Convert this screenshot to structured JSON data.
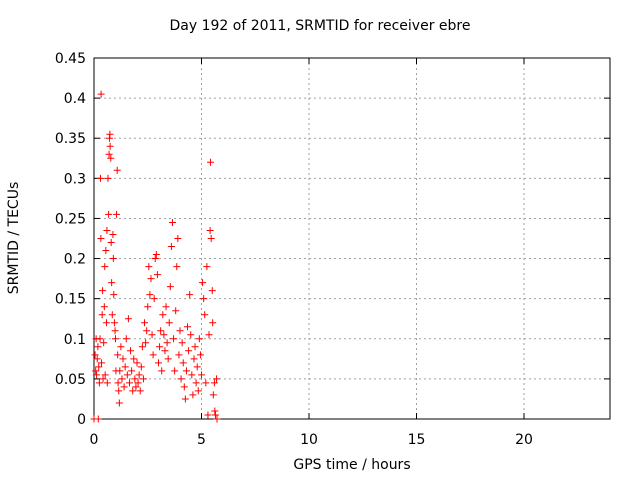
{
  "chart_data": {
    "type": "scatter",
    "title": "Day 192 of 2011, SRMTID for receiver ebre",
    "xlabel": "GPS time / hours",
    "ylabel": "SRMTID / TECUs",
    "xlim": [
      0,
      24
    ],
    "ylim": [
      0,
      0.45
    ],
    "xticks": [
      0,
      5,
      10,
      15,
      20
    ],
    "yticks": [
      0,
      0.05,
      0.1,
      0.15,
      0.2,
      0.25,
      0.3,
      0.35,
      0.4,
      0.45
    ],
    "grid": true,
    "marker": "+",
    "color": "#ff0000",
    "series": [
      {
        "points": [
          [
            0.0,
            0.0
          ],
          [
            0.05,
            0.08
          ],
          [
            0.08,
            0.06
          ],
          [
            0.1,
            0.1
          ],
          [
            0.12,
            0.055
          ],
          [
            0.15,
            0.075
          ],
          [
            0.18,
            0.09
          ],
          [
            0.2,
            0.0
          ],
          [
            0.22,
            0.065
          ],
          [
            0.25,
            0.045
          ],
          [
            0.28,
            0.1
          ],
          [
            0.3,
            0.3
          ],
          [
            0.32,
            0.225
          ],
          [
            0.33,
            0.405
          ],
          [
            0.35,
            0.07
          ],
          [
            0.38,
            0.13
          ],
          [
            0.4,
            0.16
          ],
          [
            0.42,
            0.05
          ],
          [
            0.45,
            0.095
          ],
          [
            0.48,
            0.14
          ],
          [
            0.5,
            0.19
          ],
          [
            0.52,
            0.055
          ],
          [
            0.55,
            0.21
          ],
          [
            0.58,
            0.12
          ],
          [
            0.6,
            0.235
          ],
          [
            0.62,
            0.045
          ],
          [
            0.65,
            0.3
          ],
          [
            0.68,
            0.255
          ],
          [
            0.7,
            0.33
          ],
          [
            0.72,
            0.35
          ],
          [
            0.74,
            0.355
          ],
          [
            0.75,
            0.34
          ],
          [
            0.78,
            0.325
          ],
          [
            0.8,
            0.22
          ],
          [
            0.82,
            0.17
          ],
          [
            0.85,
            0.13
          ],
          [
            0.88,
            0.23
          ],
          [
            0.9,
            0.2
          ],
          [
            0.92,
            0.155
          ],
          [
            0.95,
            0.12
          ],
          [
            0.98,
            0.11
          ],
          [
            1.0,
            0.1
          ],
          [
            1.02,
            0.06
          ],
          [
            1.05,
            0.255
          ],
          [
            1.08,
            0.31
          ],
          [
            1.1,
            0.08
          ],
          [
            1.12,
            0.045
          ],
          [
            1.15,
            0.035
          ],
          [
            1.18,
            0.02
          ],
          [
            1.2,
            0.06
          ],
          [
            1.25,
            0.09
          ],
          [
            1.3,
            0.05
          ],
          [
            1.35,
            0.075
          ],
          [
            1.4,
            0.04
          ],
          [
            1.45,
            0.065
          ],
          [
            1.5,
            0.1
          ],
          [
            1.55,
            0.055
          ],
          [
            1.6,
            0.125
          ],
          [
            1.65,
            0.045
          ],
          [
            1.7,
            0.085
          ],
          [
            1.75,
            0.06
          ],
          [
            1.8,
            0.035
          ],
          [
            1.85,
            0.075
          ],
          [
            1.9,
            0.05
          ],
          [
            1.95,
            0.04
          ],
          [
            2.0,
            0.07
          ],
          [
            2.05,
            0.045
          ],
          [
            2.1,
            0.055
          ],
          [
            2.15,
            0.035
          ],
          [
            2.2,
            0.065
          ],
          [
            2.25,
            0.09
          ],
          [
            2.3,
            0.05
          ],
          [
            2.35,
            0.12
          ],
          [
            2.4,
            0.095
          ],
          [
            2.45,
            0.11
          ],
          [
            2.5,
            0.14
          ],
          [
            2.55,
            0.19
          ],
          [
            2.6,
            0.155
          ],
          [
            2.65,
            0.175
          ],
          [
            2.7,
            0.105
          ],
          [
            2.75,
            0.08
          ],
          [
            2.8,
            0.15
          ],
          [
            2.85,
            0.2
          ],
          [
            2.9,
            0.205
          ],
          [
            2.95,
            0.18
          ],
          [
            3.0,
            0.07
          ],
          [
            3.05,
            0.09
          ],
          [
            3.1,
            0.11
          ],
          [
            3.15,
            0.06
          ],
          [
            3.2,
            0.13
          ],
          [
            3.25,
            0.105
          ],
          [
            3.3,
            0.085
          ],
          [
            3.35,
            0.14
          ],
          [
            3.4,
            0.095
          ],
          [
            3.45,
            0.075
          ],
          [
            3.5,
            0.12
          ],
          [
            3.55,
            0.165
          ],
          [
            3.6,
            0.215
          ],
          [
            3.65,
            0.245
          ],
          [
            3.7,
            0.1
          ],
          [
            3.75,
            0.06
          ],
          [
            3.8,
            0.135
          ],
          [
            3.85,
            0.19
          ],
          [
            3.9,
            0.225
          ],
          [
            3.95,
            0.08
          ],
          [
            4.0,
            0.11
          ],
          [
            4.05,
            0.05
          ],
          [
            4.1,
            0.095
          ],
          [
            4.15,
            0.07
          ],
          [
            4.2,
            0.04
          ],
          [
            4.25,
            0.025
          ],
          [
            4.3,
            0.06
          ],
          [
            4.35,
            0.115
          ],
          [
            4.4,
            0.085
          ],
          [
            4.45,
            0.155
          ],
          [
            4.5,
            0.105
          ],
          [
            4.55,
            0.055
          ],
          [
            4.6,
            0.03
          ],
          [
            4.65,
            0.075
          ],
          [
            4.7,
            0.09
          ],
          [
            4.75,
            0.045
          ],
          [
            4.8,
            0.065
          ],
          [
            4.85,
            0.035
          ],
          [
            4.9,
            0.1
          ],
          [
            4.95,
            0.08
          ],
          [
            5.0,
            0.055
          ],
          [
            5.05,
            0.17
          ],
          [
            5.1,
            0.15
          ],
          [
            5.15,
            0.13
          ],
          [
            5.2,
            0.045
          ],
          [
            5.25,
            0.19
          ],
          [
            5.3,
            0.005
          ],
          [
            5.35,
            0.105
          ],
          [
            5.4,
            0.235
          ],
          [
            5.42,
            0.32
          ],
          [
            5.45,
            0.225
          ],
          [
            5.5,
            0.16
          ],
          [
            5.52,
            0.12
          ],
          [
            5.55,
            0.03
          ],
          [
            5.6,
            0.045
          ],
          [
            5.62,
            0.01
          ],
          [
            5.65,
            0.005
          ],
          [
            5.7,
            0.05
          ],
          [
            5.72,
            0.0
          ]
        ]
      }
    ]
  }
}
